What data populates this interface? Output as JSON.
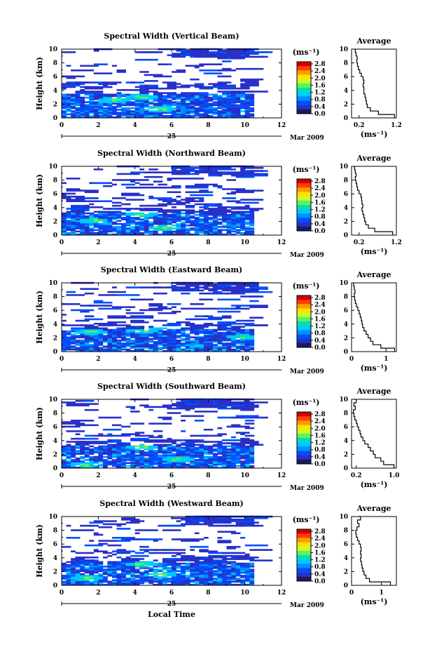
{
  "figure": {
    "date_label": "Mar 2009",
    "day_label": "25",
    "xlabel_bottom": "Local Time",
    "average_title": "Average",
    "units_label": "(ms⁻¹)"
  },
  "colorbar": {
    "ticks": [
      "2.8",
      "2.4",
      "2.0",
      "1.6",
      "1.2",
      "0.8",
      "0.4",
      "0.0"
    ],
    "colors": [
      "#d40000",
      "#ff4000",
      "#ff9900",
      "#ffe000",
      "#c8ff20",
      "#60f060",
      "#00e0b0",
      "#00c8ff",
      "#0090ff",
      "#0050ff",
      "#2830c8",
      "#1a1a60"
    ]
  },
  "chart_data": [
    {
      "type": "heatmap",
      "title": "Spectral Width (Vertical Beam)",
      "ylabel": "Height (km)",
      "xlim": [
        0,
        12
      ],
      "ylim": [
        0,
        10
      ],
      "xticks": [
        "0",
        "2",
        "4",
        "6",
        "8",
        "10",
        "12"
      ],
      "yticks": [
        "0",
        "2",
        "4",
        "6",
        "8",
        "10"
      ],
      "data_extent_hours": [
        0,
        10.5
      ],
      "dense_layer_km": [
        0,
        3.5
      ],
      "hot_spots": [
        {
          "x": 5.3,
          "y": 1.2
        },
        {
          "x": 4.3,
          "y": 3.0
        },
        {
          "x": 2.7,
          "y": 2.5
        }
      ],
      "average_profile": {
        "xlim": [
          0.0,
          1.2
        ],
        "xticks": [
          "0.2",
          "1.2"
        ],
        "xtick_values": [
          0.2,
          1.2
        ],
        "height_km": [
          0,
          0.5,
          1,
          1.5,
          2,
          2.5,
          3,
          3.5,
          4,
          4.5,
          5,
          5.5,
          6,
          6.5,
          7,
          7.5,
          8,
          8.5,
          9,
          9.5,
          10
        ],
        "width_ms": [
          1.15,
          0.72,
          0.5,
          0.42,
          0.4,
          0.38,
          0.36,
          0.33,
          0.33,
          0.31,
          0.33,
          0.31,
          0.26,
          0.22,
          0.18,
          0.16,
          0.14,
          0.15,
          0.12,
          0.1,
          0.08
        ]
      }
    },
    {
      "type": "heatmap",
      "title": "Spectral Width (Northward Beam)",
      "ylabel": "Height (km)",
      "xlim": [
        0,
        12
      ],
      "ylim": [
        0,
        10
      ],
      "xticks": [
        "0",
        "2",
        "4",
        "6",
        "8",
        "10",
        "12"
      ],
      "yticks": [
        "0",
        "2",
        "4",
        "6",
        "8",
        "10"
      ],
      "data_extent_hours": [
        0,
        10.5
      ],
      "dense_layer_km": [
        0,
        3.3
      ],
      "hot_spots": [
        {
          "x": 4.3,
          "y": 3.0
        },
        {
          "x": 1.6,
          "y": 2.0
        },
        {
          "x": 5.4,
          "y": 1.0
        }
      ],
      "average_profile": {
        "xlim": [
          0.0,
          1.2
        ],
        "xticks": [
          "0.2",
          "1.2"
        ],
        "xtick_values": [
          0.2,
          1.2
        ],
        "height_km": [
          0,
          0.5,
          1,
          1.5,
          2,
          2.5,
          3,
          3.5,
          4,
          4.5,
          5,
          5.5,
          6,
          6.5,
          7,
          7.5,
          8,
          8.5,
          9,
          9.5,
          10
        ],
        "width_ms": [
          1.1,
          0.62,
          0.45,
          0.38,
          0.35,
          0.33,
          0.3,
          0.28,
          0.3,
          0.28,
          0.27,
          0.25,
          0.2,
          0.16,
          0.14,
          0.12,
          0.1,
          0.12,
          0.1,
          0.08,
          0.07
        ]
      }
    },
    {
      "type": "heatmap",
      "title": "Spectral Width (Eastward Beam)",
      "ylabel": "Height (km)",
      "xlim": [
        0,
        12
      ],
      "ylim": [
        0,
        10
      ],
      "xticks": [
        "0",
        "2",
        "4",
        "6",
        "8",
        "10",
        "12"
      ],
      "yticks": [
        "0",
        "2",
        "4",
        "6",
        "8",
        "10"
      ],
      "data_extent_hours": [
        0,
        10.5
      ],
      "dense_layer_km": [
        0,
        3.3
      ],
      "hot_spots": [
        {
          "x": 4.3,
          "y": 3.0
        },
        {
          "x": 9.8,
          "y": 2.0
        },
        {
          "x": 1.5,
          "y": 2.8
        }
      ],
      "average_profile": {
        "xlim": [
          0.0,
          1.3
        ],
        "xticks": [
          "0",
          "1"
        ],
        "xtick_values": [
          0,
          1
        ],
        "height_km": [
          0,
          0.5,
          1,
          1.5,
          2,
          2.5,
          3,
          3.5,
          4,
          4.5,
          5,
          5.5,
          6,
          6.5,
          7,
          7.5,
          8,
          8.5,
          9,
          9.5,
          10
        ],
        "width_ms": [
          1.25,
          0.85,
          0.62,
          0.55,
          0.48,
          0.42,
          0.36,
          0.32,
          0.3,
          0.28,
          0.25,
          0.22,
          0.18,
          0.14,
          0.11,
          0.09,
          0.08,
          0.1,
          0.08,
          0.06,
          0.05
        ]
      }
    },
    {
      "type": "heatmap",
      "title": "Spectral Width (Southward Beam)",
      "ylabel": "Height (km)",
      "xlim": [
        0,
        12
      ],
      "ylim": [
        0,
        10
      ],
      "xticks": [
        "0",
        "2",
        "4",
        "6",
        "8",
        "10",
        "12"
      ],
      "yticks": [
        "0",
        "2",
        "4",
        "6",
        "8",
        "10"
      ],
      "data_extent_hours": [
        0,
        10.5
      ],
      "dense_layer_km": [
        0,
        3.2
      ],
      "hot_spots": [
        {
          "x": 4.3,
          "y": 3.0
        },
        {
          "x": 6.3,
          "y": 1.2
        },
        {
          "x": 1.2,
          "y": 0.4
        }
      ],
      "average_profile": {
        "xlim": [
          0.1,
          1.05
        ],
        "xticks": [
          "0.2",
          "1.0"
        ],
        "xtick_values": [
          0.2,
          1.0
        ],
        "height_km": [
          0,
          0.5,
          1,
          1.5,
          2,
          2.5,
          3,
          3.5,
          4,
          4.5,
          5,
          5.5,
          6,
          6.5,
          7,
          7.5,
          8,
          8.5,
          9,
          9.5,
          10
        ],
        "width_ms": [
          1.0,
          0.78,
          0.72,
          0.6,
          0.56,
          0.5,
          0.45,
          0.38,
          0.34,
          0.3,
          0.28,
          0.25,
          0.22,
          0.2,
          0.17,
          0.15,
          0.14,
          0.18,
          0.15,
          0.2,
          0.16
        ]
      }
    },
    {
      "type": "heatmap",
      "title": "Spectral Width (Westward Beam)",
      "ylabel": "Height (km)",
      "xlim": [
        0,
        12
      ],
      "ylim": [
        0,
        10
      ],
      "xticks": [
        "0",
        "2",
        "4",
        "6",
        "8",
        "10",
        "12"
      ],
      "yticks": [
        "0",
        "2",
        "4",
        "6",
        "8",
        "10"
      ],
      "data_extent_hours": [
        0,
        10.5
      ],
      "dense_layer_km": [
        0,
        3.3
      ],
      "hot_spots": [
        {
          "x": 4.3,
          "y": 3.0
        },
        {
          "x": 5.3,
          "y": 1.5
        },
        {
          "x": 1.3,
          "y": 1.0
        }
      ],
      "average_profile": {
        "xlim": [
          0.0,
          1.5
        ],
        "xticks": [
          "0",
          "1"
        ],
        "xtick_values": [
          0,
          1
        ],
        "height_km": [
          0,
          0.5,
          1,
          1.5,
          2,
          2.5,
          3,
          3.5,
          4,
          4.5,
          5,
          5.5,
          6,
          6.5,
          7,
          7.5,
          8,
          8.5,
          9,
          9.5,
          10
        ],
        "width_ms": [
          1.3,
          0.6,
          0.48,
          0.42,
          0.38,
          0.35,
          0.33,
          0.3,
          0.32,
          0.3,
          0.32,
          0.3,
          0.25,
          0.2,
          0.16,
          0.14,
          0.18,
          0.25,
          0.2,
          0.3,
          0.22
        ]
      }
    }
  ]
}
